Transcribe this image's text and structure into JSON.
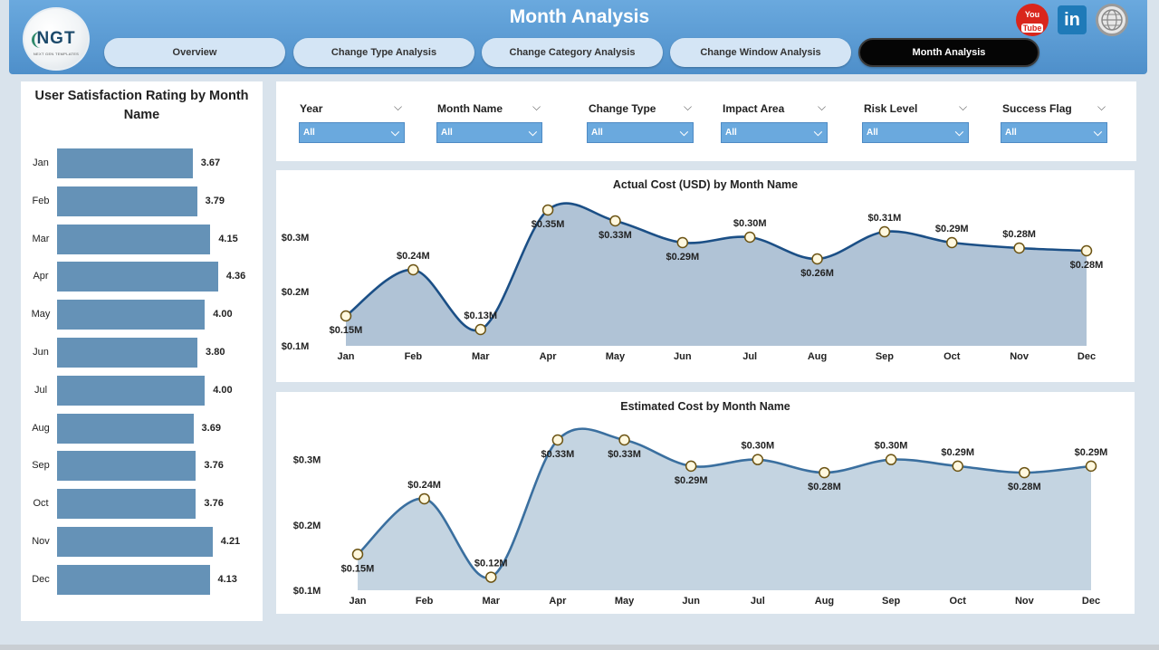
{
  "header": {
    "title": "Month Analysis",
    "logo_text": "NGT",
    "logo_subtitle": "NEXT GEN TEMPLATES",
    "tabs": [
      {
        "label": "Overview"
      },
      {
        "label": "Change Type Analysis"
      },
      {
        "label": "Change Category Analysis"
      },
      {
        "label": "Change Window Analysis"
      },
      {
        "label": "Month Analysis",
        "active": true
      }
    ],
    "social": {
      "youtube_top": "You",
      "youtube_bottom": "Tube",
      "linkedin": "in"
    }
  },
  "filters": [
    {
      "label": "Year",
      "value": "All"
    },
    {
      "label": "Month Name",
      "value": "All"
    },
    {
      "label": "Change Type",
      "value": "All"
    },
    {
      "label": "Impact Area",
      "value": "All"
    },
    {
      "label": "Risk Level",
      "value": "All"
    },
    {
      "label": "Success Flag",
      "value": "All"
    }
  ],
  "colors": {
    "header": "#5b9bd5",
    "bar": "#6592b7",
    "line1": "#1b4f86",
    "area1": "#b0c3d6",
    "line2": "#3a6f9f",
    "area2": "#c4d4e1",
    "marker_fill": "#fff8df",
    "marker_stroke": "#6b5313"
  },
  "chart_data": [
    {
      "type": "bar",
      "orientation": "horizontal",
      "title": "User Satisfaction Rating by Month Name",
      "categories": [
        "Jan",
        "Feb",
        "Mar",
        "Apr",
        "May",
        "Jun",
        "Jul",
        "Aug",
        "Sep",
        "Oct",
        "Nov",
        "Dec"
      ],
      "values": [
        3.67,
        3.79,
        4.15,
        4.36,
        4.0,
        3.8,
        4.0,
        3.69,
        3.76,
        3.76,
        4.21,
        4.13
      ],
      "value_labels": [
        "3.67",
        "3.79",
        "4.15",
        "4.36",
        "4.00",
        "3.80",
        "4.00",
        "3.69",
        "3.76",
        "3.76",
        "4.21",
        "4.13"
      ]
    },
    {
      "type": "area",
      "title": "Actual Cost (USD) by Month Name",
      "categories": [
        "Jan",
        "Feb",
        "Mar",
        "Apr",
        "May",
        "Jun",
        "Jul",
        "Aug",
        "Sep",
        "Oct",
        "Nov",
        "Dec"
      ],
      "values": [
        0.155,
        0.24,
        0.13,
        0.35,
        0.33,
        0.29,
        0.3,
        0.26,
        0.31,
        0.29,
        0.28,
        0.275
      ],
      "value_labels": [
        "$0.15M",
        "$0.24M",
        "$0.13M",
        "$0.35M",
        "$0.33M",
        "$0.29M",
        "$0.30M",
        "$0.26M",
        "$0.31M",
        "$0.29M",
        "$0.28M",
        "$0.28M"
      ],
      "label_position": [
        "below",
        "above",
        "above",
        "below",
        "below",
        "below",
        "above",
        "below",
        "above",
        "above",
        "above",
        "below"
      ],
      "yticks": [
        0.1,
        0.2,
        0.3
      ],
      "ytick_labels": [
        "$0.1M",
        "$0.2M",
        "$0.3M"
      ],
      "ylim": [
        0.1,
        0.35
      ]
    },
    {
      "type": "area",
      "title": "Estimated Cost by Month Name",
      "categories": [
        "Jan",
        "Feb",
        "Mar",
        "Apr",
        "May",
        "Jun",
        "Jul",
        "Aug",
        "Sep",
        "Oct",
        "Nov",
        "Dec"
      ],
      "values": [
        0.155,
        0.24,
        0.12,
        0.33,
        0.33,
        0.29,
        0.3,
        0.28,
        0.3,
        0.29,
        0.28,
        0.29
      ],
      "value_labels": [
        "$0.15M",
        "$0.24M",
        "$0.12M",
        "$0.33M",
        "$0.33M",
        "$0.29M",
        "$0.30M",
        "$0.28M",
        "$0.30M",
        "$0.29M",
        "$0.28M",
        "$0.29M"
      ],
      "label_position": [
        "below",
        "above",
        "above",
        "below",
        "below",
        "below",
        "above",
        "below",
        "above",
        "above",
        "below",
        "above"
      ],
      "yticks": [
        0.1,
        0.2,
        0.3
      ],
      "ytick_labels": [
        "$0.1M",
        "$0.2M",
        "$0.3M"
      ],
      "ylim": [
        0.1,
        0.33
      ]
    }
  ]
}
